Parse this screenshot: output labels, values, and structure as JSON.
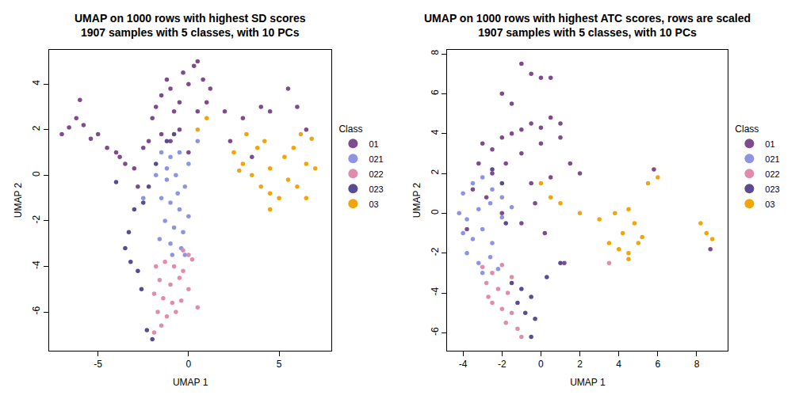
{
  "chart_data": [
    {
      "type": "scatter",
      "title": "UMAP on 1000 rows with highest SD scores\n1907 samples with 5 classes, with 10 PCs",
      "x_label": "UMAP 1",
      "y_label": "UMAP 2",
      "legend_title": "Class",
      "xlim": [
        -7.7,
        7.9
      ],
      "ylim": [
        -7.7,
        5.5
      ],
      "xticks": [
        -5,
        0,
        5
      ],
      "yticks": [
        -6,
        -4,
        -2,
        0,
        2,
        4
      ],
      "legend": "right",
      "series": [
        {
          "name": "01",
          "color": "#7F4B8E",
          "x": [
            -7,
            -6.6,
            -6.2,
            -6,
            -5.8,
            -5.4,
            -5,
            -4.5,
            -4,
            -3.5,
            -3,
            -2.5,
            -2,
            -1.8,
            -1.5,
            -1.2,
            -1,
            -0.8,
            -0.5,
            -0.3,
            0,
            0.3,
            0.5,
            0.8,
            1,
            1.2,
            -1.5,
            -0.5,
            0.5,
            -2.2,
            -1,
            0,
            2,
            2.3,
            3,
            3.5,
            4,
            4.5,
            5.5,
            6,
            6.5,
            -2.8,
            -3.8
          ],
          "y": [
            1.8,
            2.1,
            2.5,
            3.3,
            2.2,
            1.6,
            1.8,
            1.2,
            1,
            0.5,
            0.3,
            1.2,
            2.5,
            3,
            3.5,
            4.2,
            3.8,
            2.8,
            3.2,
            4.5,
            4,
            4.8,
            5,
            4.2,
            3.2,
            3.8,
            1.8,
            2,
            2.8,
            1.5,
            1.5,
            1,
            2.8,
            1.5,
            2.5,
            0.8,
            3,
            2.8,
            3.8,
            3,
            2,
            -0.5,
            0.8
          ]
        },
        {
          "name": "021",
          "color": "#8C94E4",
          "x": [
            -1.5,
            -1,
            -0.5,
            0,
            -1.8,
            -1.2,
            -0.7,
            -0.2,
            -1.5,
            -1,
            -0.5,
            0,
            -1.3,
            -0.8,
            -0.3,
            -1.6,
            -1,
            -0.4,
            -0.9,
            -0.2,
            -2.5,
            0.5,
            -1.2,
            -0.6
          ],
          "y": [
            1,
            0.8,
            1,
            0.5,
            0,
            -0.2,
            0,
            -0.5,
            -1,
            -1.2,
            -1.5,
            -1.8,
            -2,
            -2.3,
            -2.5,
            -2.8,
            -3,
            -3.2,
            -3.5,
            -3.5,
            -1,
            1.5,
            0.3,
            -0.8
          ]
        },
        {
          "name": "022",
          "color": "#E08DAD",
          "x": [
            -1.8,
            -1.3,
            -0.8,
            -0.3,
            0.2,
            -1.6,
            -1,
            -0.5,
            0,
            -1.9,
            -1.4,
            -0.9,
            -0.4,
            -1.7,
            -1.2,
            -0.7,
            -1.5,
            -1.9,
            0.5,
            0,
            -0.3
          ],
          "y": [
            -4,
            -3.8,
            -4,
            -4.2,
            -3.7,
            -4.6,
            -4.8,
            -4.5,
            -5,
            -5.2,
            -5.4,
            -5.6,
            -5.5,
            -6,
            -6.2,
            -6,
            -6.6,
            -6.9,
            -5.8,
            -3.5,
            -3.3
          ]
        },
        {
          "name": "023",
          "color": "#5B4B8F",
          "x": [
            -3,
            -3.3,
            -3.5,
            -3.2,
            -2.8,
            -2.5,
            -2.2,
            -2,
            -2.3,
            -1.2,
            -0.8,
            -4,
            -2.6,
            -1.8
          ],
          "y": [
            -1.5,
            -2.5,
            -3.2,
            -3.8,
            -4.2,
            -1.2,
            -0.5,
            -7.2,
            -6.8,
            1.5,
            1.8,
            -0.3,
            -5,
            0.5
          ]
        },
        {
          "name": "03",
          "color": "#F2A50A",
          "x": [
            3,
            3.5,
            4,
            4.5,
            5,
            5.5,
            6,
            6.5,
            7,
            3.8,
            4.2,
            5.8,
            6.2,
            6.8,
            5.3,
            4.5,
            3.2,
            2.5,
            0.5,
            1,
            2.8,
            6.5,
            4.5
          ],
          "y": [
            0.5,
            0,
            -0.5,
            -0.8,
            -1,
            -0.2,
            -0.5,
            0.5,
            0.3,
            1.2,
            1.5,
            1.2,
            1.8,
            1.6,
            0.8,
            -1.5,
            1.8,
            1,
            2,
            2.5,
            0.2,
            -1,
            0.3
          ]
        }
      ]
    },
    {
      "type": "scatter",
      "title": "UMAP on 1000 rows with highest ATC scores, rows are scaled\n1907 samples with 5 classes, with 10 PCs",
      "x_label": "UMAP 1",
      "y_label": "UMAP 2",
      "legend_title": "Class",
      "xlim": [
        -4.8,
        9.6
      ],
      "ylim": [
        -6.9,
        8.2
      ],
      "xticks": [
        -4,
        -2,
        0,
        2,
        4,
        6,
        8
      ],
      "yticks": [
        -6,
        -4,
        -2,
        0,
        2,
        4,
        6,
        8
      ],
      "legend": "right",
      "series": [
        {
          "name": "01",
          "color": "#7F4B8E",
          "x": [
            -1,
            -0.5,
            0,
            0.5,
            -2,
            -1.5,
            -3,
            -2.5,
            -2,
            -1.5,
            -1,
            -0.5,
            0,
            0.5,
            1,
            -3.2,
            -2.5,
            -1.8,
            -1,
            0,
            1,
            -0.5,
            0.5,
            1.5,
            2,
            -3.5,
            -2.8,
            -2,
            -1,
            0.2,
            5.8,
            8.7,
            1.2,
            -3.8,
            -0.3
          ],
          "y": [
            7.5,
            7,
            6.8,
            6.8,
            6,
            5.5,
            3.5,
            3.2,
            3.8,
            4,
            4.2,
            4.5,
            4.3,
            4.8,
            4.5,
            2.5,
            2,
            2.5,
            3,
            3.5,
            3.8,
            1.5,
            1.8,
            2.5,
            2,
            1.2,
            0.8,
            0,
            -0.5,
            -1,
            2.2,
            -1.8,
            -2.5,
            -0.8,
            0.5
          ]
        },
        {
          "name": "021",
          "color": "#8C94E4",
          "x": [
            -4,
            -3.5,
            -3,
            -2.5,
            -2,
            -4.2,
            -3.8,
            -3.2,
            -2.6,
            -2,
            -1.5,
            -4,
            -3.5,
            -3,
            -2.5,
            -3.8,
            -3.2,
            -2.6,
            -3,
            -2.2
          ],
          "y": [
            1,
            1.5,
            1.8,
            1.2,
            0.8,
            0,
            -0.3,
            0.2,
            0.5,
            -0.2,
            0.3,
            -1,
            -1.3,
            -0.8,
            -1.5,
            -2,
            -2.5,
            -2.2,
            -3,
            -2.8
          ]
        },
        {
          "name": "022",
          "color": "#E08DAD",
          "x": [
            -3,
            -2.5,
            -2,
            -1.5,
            -2.8,
            -2.2,
            -1.7,
            -2.5,
            -2,
            -1.5,
            -1.8,
            -1.2,
            -1,
            3.5,
            -2.7
          ],
          "y": [
            -2.7,
            -3,
            -2.6,
            -3.2,
            -3.5,
            -3.8,
            -4,
            -4.5,
            -4.8,
            -5,
            -5.5,
            -5.8,
            -6.2,
            -2.5,
            -4.2
          ]
        },
        {
          "name": "023",
          "color": "#5B4B8F",
          "x": [
            -1.5,
            -1,
            -0.5,
            -1.2,
            -0.8,
            -0.3,
            -0.5,
            1,
            -2,
            -1.8,
            0.3,
            -2.5
          ],
          "y": [
            -3.5,
            -3.8,
            -4.2,
            -4.5,
            -5,
            -5.3,
            -6.2,
            -2.5,
            1.5,
            -0.5,
            -3.2,
            2.2
          ]
        },
        {
          "name": "03",
          "color": "#F2A50A",
          "x": [
            3.5,
            4,
            4.5,
            5,
            4.2,
            4.8,
            3.8,
            5.2,
            4.5,
            5.5,
            6,
            8.5,
            8.8,
            8.2,
            0,
            1,
            0.5,
            2,
            3,
            4.5
          ],
          "y": [
            -1.5,
            -1.8,
            -2,
            -1.5,
            -1,
            -0.5,
            0,
            -1.2,
            -2.3,
            1.5,
            1.8,
            -1,
            -1.3,
            -0.5,
            1.5,
            0.5,
            0.8,
            0,
            -0.3,
            0.2
          ]
        }
      ]
    }
  ]
}
